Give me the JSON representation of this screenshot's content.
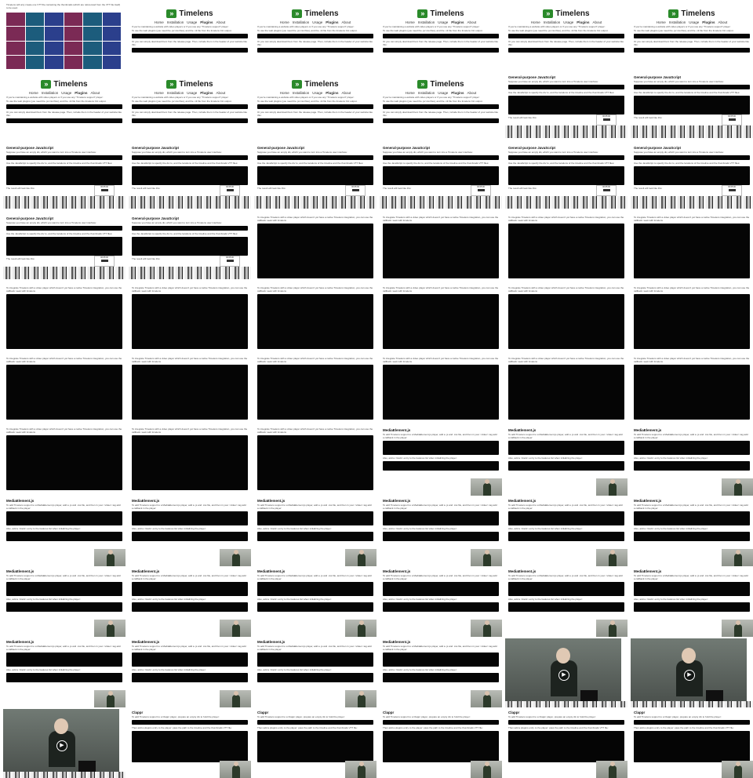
{
  "page": {
    "intro_caption": "Timelens will only create one VTT file containing the thumbnails (which are referenced from the VTT file itself) to be used."
  },
  "header": {
    "brand": "Timelens",
    "nav": [
      "Home",
      "Installation",
      "Usage",
      "Plugins",
      "About"
    ],
    "active_nav": "Plugins"
  },
  "texts": {
    "plugins_intro": "If you're maintaining a website with video players or if you use any \"Timelens support\" player:",
    "plugins_options": "To use the web plugins (you need the .js/.css files), and the .vtt file from the timelens CLI output.",
    "plugins_cdn": "Or you can simply download them from the release page. Then, include them in the header of your website like this:"
  },
  "sections": {
    "gpjs": {
      "title": "General-purpose JavaScript",
      "desc": "Suppose you have an empty div, which you want to turn into a Timelens user interface:",
      "setup": "Use the JavaScript to specify the div to, and the locations of the timeline and the thumbnails VTT files:",
      "result": "The result will look like this:",
      "tooltip_time": "00:05:00",
      "tooltip_button": "Play"
    },
    "videojs": {
      "desc": "To integrate Timelens with a video player which doesn't yet have a native Timelens integration, you can use the callback: seek with timelens"
    },
    "mejs": {
      "title": "MediaElement.js",
      "desc": "To add Timelens support to a MediaElement.js player, add a .js and .css file, and then in your <video> tag add a callback in the player:",
      "call": "Also, add a <track> entry to the features list when initializing the player:"
    },
    "clappr": {
      "title": "Clappr",
      "desc": "To add Timelens support to a Clappr player, prepare an empty div to hold the player:",
      "call": "Then add a plugins entry to the player: pass the path to the timeline and the thumbnails VTT file:"
    }
  },
  "icons": {
    "logo": "chevrons-right-icon",
    "play": "play-icon"
  },
  "colors": {
    "brand_green": "#2a8a2a",
    "code_bg": "#050505",
    "text": "#222222"
  }
}
